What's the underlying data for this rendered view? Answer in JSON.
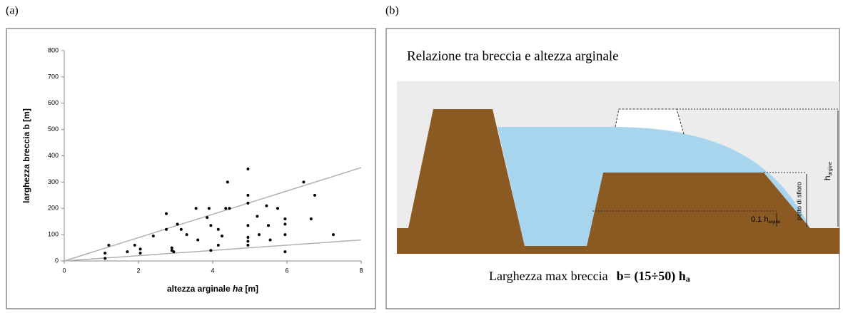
{
  "panels": [
    "(a)",
    "(b)"
  ],
  "chart_data": {
    "type": "scatter",
    "ylabel": "larghezza breccia  b [m]",
    "xlabel_parts": [
      "altezza arginale ",
      "ha",
      " [m]"
    ],
    "x": [
      1.1,
      1.1,
      1.2,
      1.7,
      1.9,
      2.05,
      2.05,
      2.4,
      2.75,
      2.75,
      2.9,
      2.9,
      2.95,
      3.05,
      3.15,
      3.3,
      3.55,
      3.6,
      3.85,
      3.9,
      3.95,
      3.95,
      4.15,
      4.15,
      4.25,
      4.35,
      4.4,
      4.45,
      4.95,
      4.95,
      4.95,
      4.95,
      4.95,
      4.95,
      4.95,
      5.2,
      5.25,
      5.45,
      5.5,
      5.55,
      5.75,
      5.95,
      5.95,
      5.95,
      5.95,
      6.45,
      6.65,
      6.75,
      7.25
    ],
    "values": [
      30,
      10,
      60,
      35,
      60,
      45,
      30,
      95,
      180,
      120,
      40,
      50,
      35,
      140,
      120,
      100,
      200,
      80,
      165,
      200,
      135,
      40,
      120,
      60,
      95,
      200,
      300,
      200,
      350,
      250,
      220,
      135,
      90,
      75,
      60,
      170,
      100,
      210,
      135,
      80,
      200,
      160,
      140,
      100,
      35,
      300,
      160,
      250,
      100
    ],
    "color": "#000000",
    "lines": [
      {
        "x": [
          0,
          8
        ],
        "values": [
          0,
          355
        ],
        "color": "#b0b0b0"
      },
      {
        "x": [
          0,
          8
        ],
        "values": [
          0,
          80
        ],
        "color": "#b0b0b0"
      }
    ],
    "xlim": [
      0,
      8
    ],
    "xticks": [
      0,
      2,
      4,
      6,
      8
    ],
    "ylim": [
      0,
      800
    ],
    "yticks": [
      0,
      100,
      200,
      300,
      400,
      500,
      600,
      700,
      800
    ],
    "grid": false
  },
  "diagram": {
    "title": "Relazione tra breccia e altezza arginale",
    "caption": "Larghezza max breccia",
    "formula": [
      "b= (15÷50) h",
      "a"
    ],
    "h_label": [
      "h",
      "argine"
    ],
    "petto_label": "petto di sfioro",
    "tenth_label": [
      "0.1 h",
      "argine"
    ]
  }
}
